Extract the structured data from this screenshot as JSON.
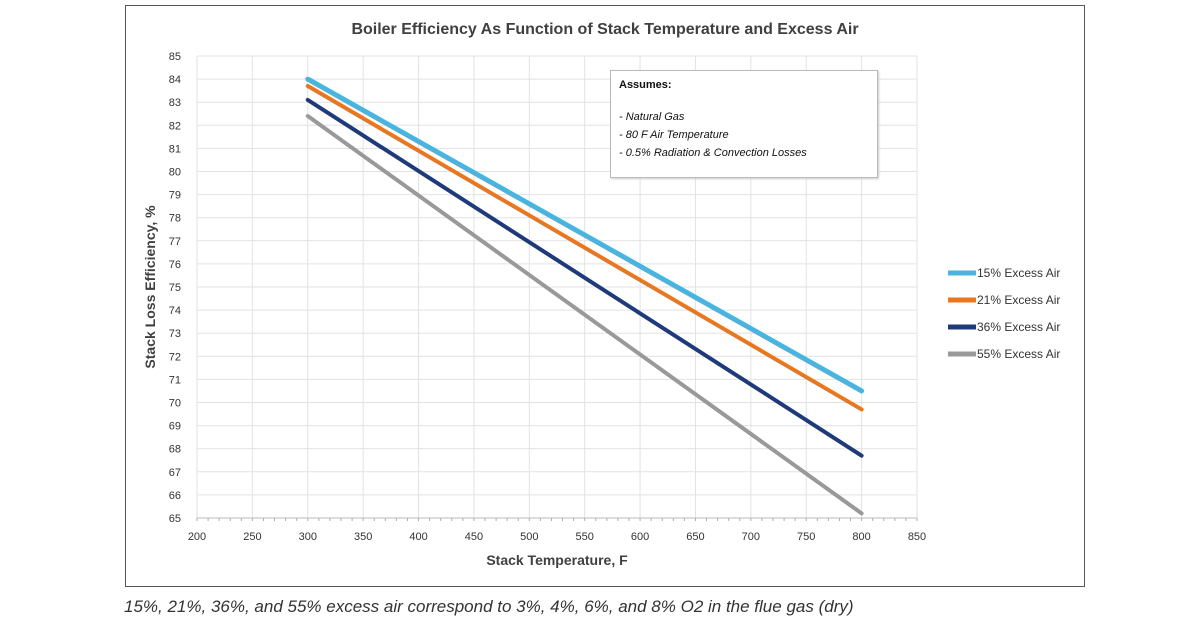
{
  "chart_data": {
    "type": "line",
    "title": "Boiler Efficiency As Function of Stack Temperature and Excess Air",
    "xlabel": "Stack Temperature, F",
    "ylabel": "Stack Loss Efficiency, %",
    "xlim": [
      200,
      850
    ],
    "ylim": [
      65,
      85
    ],
    "xticks": [
      200,
      250,
      300,
      350,
      400,
      450,
      500,
      550,
      600,
      650,
      700,
      750,
      800,
      850
    ],
    "yticks": [
      65,
      66,
      67,
      68,
      69,
      70,
      71,
      72,
      73,
      74,
      75,
      76,
      77,
      78,
      79,
      80,
      81,
      82,
      83,
      84,
      85
    ],
    "grid": true,
    "legend_position": "right",
    "series": [
      {
        "name": "15% Excess Air",
        "color": "#4BB4DE",
        "x": [
          300,
          800
        ],
        "y": [
          84.0,
          70.5
        ]
      },
      {
        "name": "21% Excess Air",
        "color": "#E87722",
        "x": [
          300,
          800
        ],
        "y": [
          83.7,
          69.7
        ]
      },
      {
        "name": "36% Excess Air",
        "color": "#1F3A7A",
        "x": [
          300,
          800
        ],
        "y": [
          83.1,
          67.7
        ]
      },
      {
        "name": "55% Excess Air",
        "color": "#999999",
        "x": [
          300,
          800
        ],
        "y": [
          82.4,
          65.2
        ]
      }
    ],
    "annotation": {
      "heading": "Assumes:",
      "lines": [
        "- Natural Gas",
        "- 80 F Air Temperature",
        "- 0.5% Radiation & Convection Losses"
      ]
    }
  },
  "caption": "15%, 21%, 36%, and 55% excess air correspond to 3%, 4%, 6%, and 8% O2 in the flue gas (dry)"
}
